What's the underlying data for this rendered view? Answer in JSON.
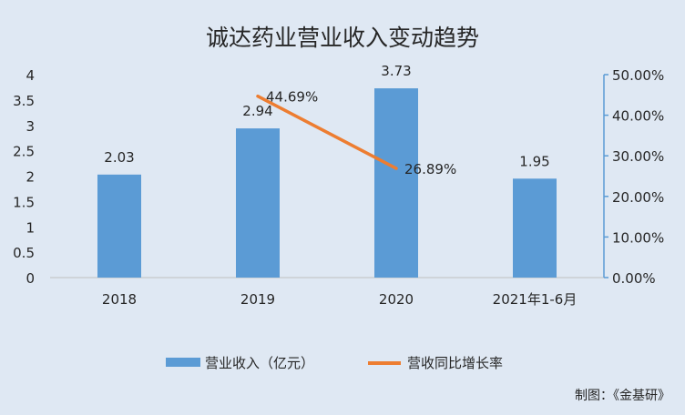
{
  "chart_data": {
    "type": "bar",
    "title": "诚达药业营业收入变动趋势",
    "categories": [
      "2018",
      "2019",
      "2020",
      "2021年1-6月"
    ],
    "series": [
      {
        "name": "营业收入（亿元）",
        "type": "bar",
        "axis": "left",
        "values": [
          2.03,
          2.94,
          3.73,
          1.95
        ],
        "labels": [
          "2.03",
          "2.94",
          "3.73",
          "1.95"
        ],
        "color": "#5b9bd5"
      },
      {
        "name": "营收同比增长率",
        "type": "line",
        "axis": "right",
        "values": [
          null,
          44.69,
          26.89,
          null
        ],
        "labels": [
          "",
          "44.69%",
          "26.89%",
          ""
        ],
        "color": "#ed7d31"
      }
    ],
    "y_left": {
      "min": 0,
      "max": 4,
      "ticks": [
        "0",
        "0.5",
        "1",
        "1.5",
        "2",
        "2.5",
        "3",
        "3.5",
        "4"
      ]
    },
    "y_right": {
      "min": 0,
      "max": 50,
      "ticks": [
        "0.00%",
        "10.00%",
        "20.00%",
        "30.00%",
        "40.00%",
        "50.00%"
      ]
    },
    "legend_position": "bottom",
    "grid": false
  },
  "footer": {
    "source": "制图：《金基研》"
  }
}
